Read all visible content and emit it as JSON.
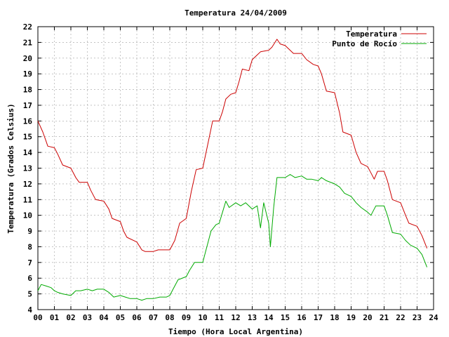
{
  "chart_data": {
    "type": "line",
    "title": "Temperatura 24/04/2009",
    "xlabel": "Tiempo (Hora Local Argentina)",
    "ylabel": "Temperatura (Grados Celsius)",
    "xlim": [
      0,
      24
    ],
    "ylim": [
      4,
      22
    ],
    "xticks": [
      {
        "value": 0,
        "label": "00"
      },
      {
        "value": 1,
        "label": "01"
      },
      {
        "value": 2,
        "label": "02"
      },
      {
        "value": 3,
        "label": "03"
      },
      {
        "value": 4,
        "label": "04"
      },
      {
        "value": 5,
        "label": "05"
      },
      {
        "value": 6,
        "label": "06"
      },
      {
        "value": 7,
        "label": "07"
      },
      {
        "value": 8,
        "label": "08"
      },
      {
        "value": 9,
        "label": "09"
      },
      {
        "value": 10,
        "label": "10"
      },
      {
        "value": 11,
        "label": "11"
      },
      {
        "value": 12,
        "label": "12"
      },
      {
        "value": 13,
        "label": "13"
      },
      {
        "value": 14,
        "label": "14"
      },
      {
        "value": 15,
        "label": "15"
      },
      {
        "value": 16,
        "label": "16"
      },
      {
        "value": 17,
        "label": "17"
      },
      {
        "value": 18,
        "label": "18"
      },
      {
        "value": 19,
        "label": "19"
      },
      {
        "value": 20,
        "label": "20"
      },
      {
        "value": 21,
        "label": "21"
      },
      {
        "value": 22,
        "label": "22"
      },
      {
        "value": 23,
        "label": "23"
      },
      {
        "value": 24,
        "label": "24"
      }
    ],
    "yticks": [
      4,
      5,
      6,
      7,
      8,
      9,
      10,
      11,
      12,
      13,
      14,
      15,
      16,
      17,
      18,
      19,
      20,
      21,
      22
    ],
    "grid": true,
    "legend_position": "top-right",
    "series": [
      {
        "name": "Temperatura",
        "color": "#cc0000",
        "points": [
          [
            0.0,
            16.0
          ],
          [
            0.3,
            15.3
          ],
          [
            0.5,
            14.7
          ],
          [
            0.6,
            14.4
          ],
          [
            1.0,
            14.3
          ],
          [
            1.2,
            13.9
          ],
          [
            1.5,
            13.2
          ],
          [
            2.0,
            13.0
          ],
          [
            2.3,
            12.4
          ],
          [
            2.5,
            12.1
          ],
          [
            3.0,
            12.1
          ],
          [
            3.2,
            11.6
          ],
          [
            3.5,
            11.0
          ],
          [
            4.0,
            10.9
          ],
          [
            4.3,
            10.4
          ],
          [
            4.5,
            9.8
          ],
          [
            5.0,
            9.6
          ],
          [
            5.2,
            9.0
          ],
          [
            5.4,
            8.6
          ],
          [
            6.0,
            8.3
          ],
          [
            6.3,
            7.8
          ],
          [
            6.5,
            7.7
          ],
          [
            7.0,
            7.7
          ],
          [
            7.3,
            7.8
          ],
          [
            8.0,
            7.8
          ],
          [
            8.3,
            8.4
          ],
          [
            8.6,
            9.5
          ],
          [
            9.0,
            9.8
          ],
          [
            9.3,
            11.5
          ],
          [
            9.6,
            12.9
          ],
          [
            10.0,
            13.0
          ],
          [
            10.3,
            14.5
          ],
          [
            10.6,
            16.0
          ],
          [
            11.0,
            16.0
          ],
          [
            11.2,
            16.6
          ],
          [
            11.4,
            17.4
          ],
          [
            11.7,
            17.7
          ],
          [
            12.0,
            17.8
          ],
          [
            12.2,
            18.5
          ],
          [
            12.4,
            19.3
          ],
          [
            12.8,
            19.2
          ],
          [
            13.0,
            19.9
          ],
          [
            13.3,
            20.2
          ],
          [
            13.5,
            20.4
          ],
          [
            14.0,
            20.5
          ],
          [
            14.2,
            20.7
          ],
          [
            14.5,
            21.2
          ],
          [
            14.7,
            20.9
          ],
          [
            15.0,
            20.8
          ],
          [
            15.3,
            20.5
          ],
          [
            15.5,
            20.3
          ],
          [
            16.0,
            20.3
          ],
          [
            16.3,
            19.9
          ],
          [
            16.7,
            19.6
          ],
          [
            17.0,
            19.5
          ],
          [
            17.2,
            19.0
          ],
          [
            17.5,
            17.9
          ],
          [
            18.0,
            17.8
          ],
          [
            18.3,
            16.5
          ],
          [
            18.5,
            15.3
          ],
          [
            19.0,
            15.1
          ],
          [
            19.3,
            14.0
          ],
          [
            19.6,
            13.3
          ],
          [
            20.0,
            13.1
          ],
          [
            20.2,
            12.7
          ],
          [
            20.4,
            12.3
          ],
          [
            20.6,
            12.8
          ],
          [
            21.0,
            12.8
          ],
          [
            21.2,
            12.2
          ],
          [
            21.5,
            11.0
          ],
          [
            22.0,
            10.8
          ],
          [
            22.3,
            10.0
          ],
          [
            22.5,
            9.5
          ],
          [
            23.0,
            9.3
          ],
          [
            23.3,
            8.7
          ],
          [
            23.6,
            7.9
          ]
        ]
      },
      {
        "name": "Punto de Rocío",
        "color": "#00aa00",
        "points": [
          [
            0.0,
            5.2
          ],
          [
            0.2,
            5.6
          ],
          [
            0.5,
            5.5
          ],
          [
            0.8,
            5.4
          ],
          [
            1.0,
            5.2
          ],
          [
            1.2,
            5.1
          ],
          [
            1.5,
            5.0
          ],
          [
            2.0,
            4.9
          ],
          [
            2.3,
            5.2
          ],
          [
            2.6,
            5.2
          ],
          [
            3.0,
            5.3
          ],
          [
            3.3,
            5.2
          ],
          [
            3.6,
            5.3
          ],
          [
            4.0,
            5.3
          ],
          [
            4.3,
            5.1
          ],
          [
            4.6,
            4.8
          ],
          [
            5.0,
            4.9
          ],
          [
            5.3,
            4.8
          ],
          [
            5.6,
            4.7
          ],
          [
            6.0,
            4.7
          ],
          [
            6.3,
            4.6
          ],
          [
            6.6,
            4.7
          ],
          [
            7.0,
            4.7
          ],
          [
            7.4,
            4.8
          ],
          [
            7.8,
            4.8
          ],
          [
            8.0,
            4.9
          ],
          [
            8.2,
            5.3
          ],
          [
            8.5,
            5.9
          ],
          [
            9.0,
            6.1
          ],
          [
            9.2,
            6.5
          ],
          [
            9.5,
            7.0
          ],
          [
            10.0,
            7.0
          ],
          [
            10.2,
            7.8
          ],
          [
            10.5,
            9.0
          ],
          [
            10.8,
            9.4
          ],
          [
            11.0,
            9.5
          ],
          [
            11.2,
            10.2
          ],
          [
            11.4,
            10.9
          ],
          [
            11.6,
            10.5
          ],
          [
            12.0,
            10.8
          ],
          [
            12.3,
            10.6
          ],
          [
            12.6,
            10.8
          ],
          [
            13.0,
            10.4
          ],
          [
            13.3,
            10.6
          ],
          [
            13.5,
            9.2
          ],
          [
            13.7,
            10.8
          ],
          [
            14.0,
            9.5
          ],
          [
            14.1,
            8.0
          ],
          [
            14.3,
            10.5
          ],
          [
            14.5,
            12.4
          ],
          [
            15.0,
            12.4
          ],
          [
            15.3,
            12.6
          ],
          [
            15.6,
            12.4
          ],
          [
            16.0,
            12.5
          ],
          [
            16.3,
            12.3
          ],
          [
            16.6,
            12.3
          ],
          [
            17.0,
            12.2
          ],
          [
            17.2,
            12.4
          ],
          [
            17.5,
            12.2
          ],
          [
            18.0,
            12.0
          ],
          [
            18.3,
            11.8
          ],
          [
            18.6,
            11.4
          ],
          [
            19.0,
            11.2
          ],
          [
            19.3,
            10.8
          ],
          [
            19.6,
            10.5
          ],
          [
            20.0,
            10.2
          ],
          [
            20.2,
            10.0
          ],
          [
            20.5,
            10.6
          ],
          [
            21.0,
            10.6
          ],
          [
            21.2,
            10.0
          ],
          [
            21.5,
            8.9
          ],
          [
            22.0,
            8.8
          ],
          [
            22.3,
            8.4
          ],
          [
            22.6,
            8.1
          ],
          [
            23.0,
            7.9
          ],
          [
            23.3,
            7.5
          ],
          [
            23.6,
            6.7
          ]
        ]
      }
    ]
  }
}
